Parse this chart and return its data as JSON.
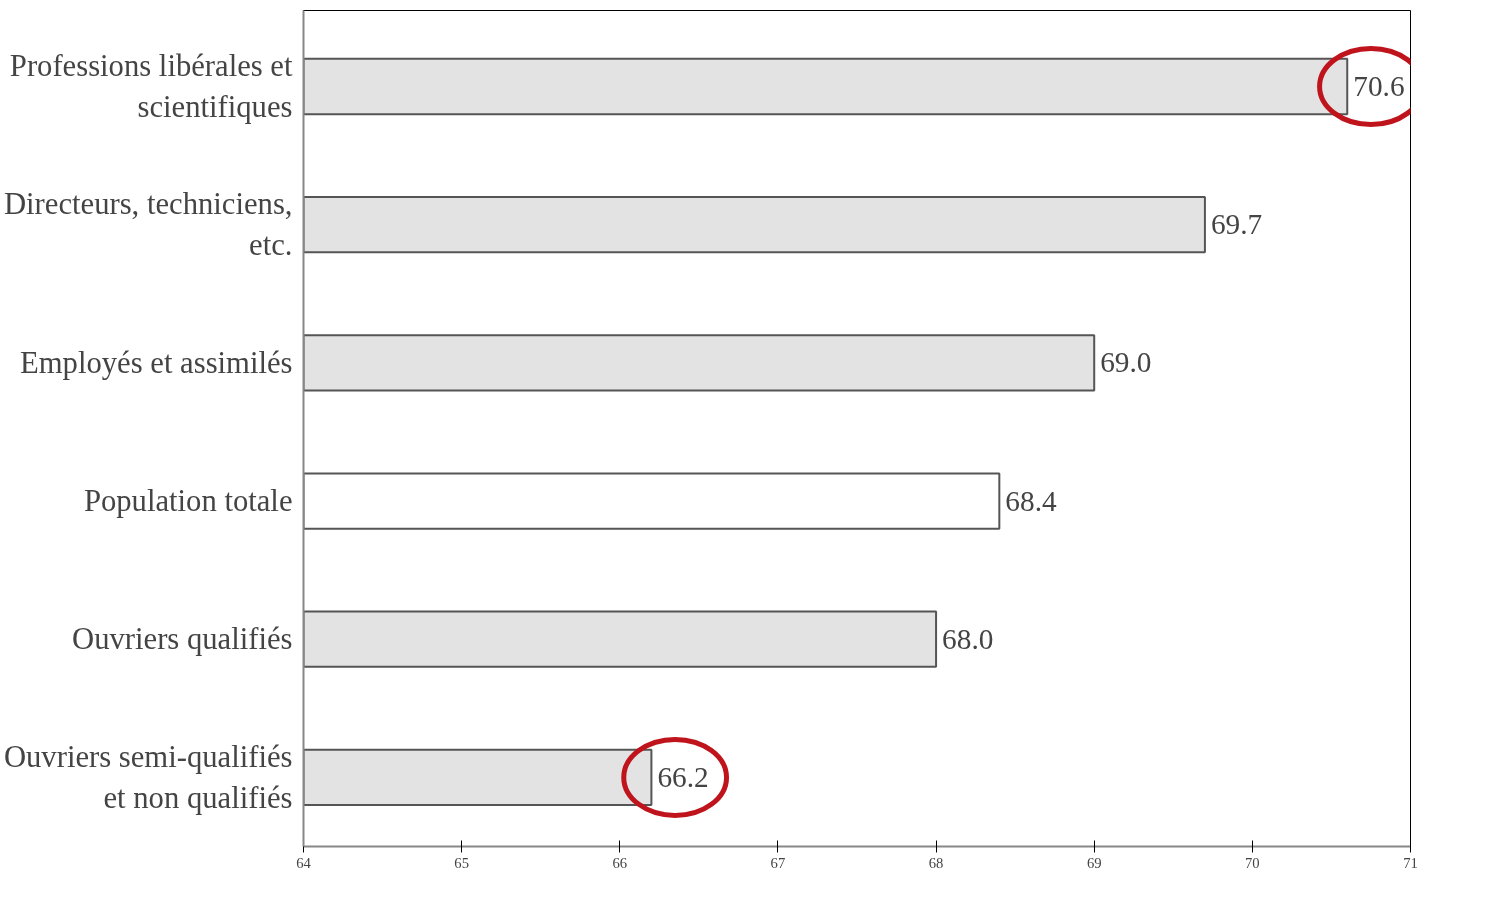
{
  "chart_data": {
    "type": "bar",
    "orientation": "horizontal",
    "categories": [
      "Professions libérales et\nscientifiques",
      "Directeurs, techniciens,\netc.",
      "Employés et assimilés",
      "Population totale",
      "Ouvriers qualifiés",
      "Ouvriers semi-qualifiés\net non qualifiés"
    ],
    "values": [
      70.6,
      69.7,
      69.0,
      68.4,
      68.0,
      66.2
    ],
    "colors": [
      "#e3e3e3",
      "#e3e3e3",
      "#e3e3e3",
      "#ffffff",
      "#e3e3e3",
      "#e3e3e3"
    ],
    "xlim": [
      64,
      71
    ],
    "xticks": [
      64,
      65,
      66,
      67,
      68,
      69,
      70,
      71
    ],
    "value_labels": [
      "70.6",
      "69.7",
      "69.0",
      "68.4",
      "68.0",
      "66.2"
    ],
    "grid": false
  }
}
